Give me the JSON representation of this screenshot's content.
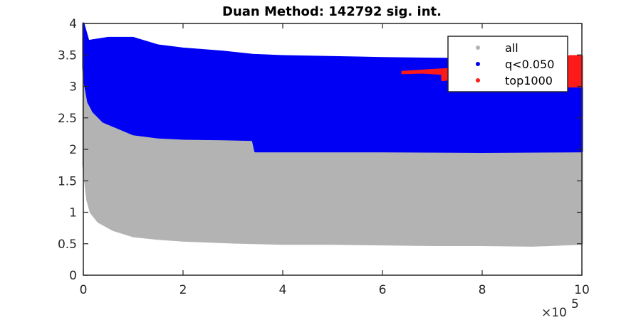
{
  "chart_data": {
    "type": "scatter",
    "title": "Duan Method: 142792 sig. int.",
    "xlabel": "",
    "ylabel": "",
    "xlim": [
      0,
      1000000
    ],
    "ylim": [
      0,
      4
    ],
    "x_exponent_label": "×10",
    "x_exponent_power": "5",
    "x_ticks": [
      0,
      200000,
      400000,
      600000,
      800000,
      1000000
    ],
    "x_tick_labels": [
      "0",
      "2",
      "4",
      "6",
      "8",
      "10"
    ],
    "y_ticks": [
      0,
      0.5,
      1,
      1.5,
      2,
      2.5,
      3,
      3.5,
      4
    ],
    "y_tick_labels": [
      "0",
      "0.5",
      "1",
      "1.5",
      "2",
      "2.5",
      "3",
      "3.5",
      "4"
    ],
    "grid": false,
    "legend_position": "top-right",
    "series": [
      {
        "name": "all",
        "color": "#b3b3b3",
        "points": [
          [
            0,
            4.0
          ],
          [
            3000,
            3.05
          ],
          [
            10000,
            2.75
          ],
          [
            20000,
            2.6
          ],
          [
            40000,
            2.45
          ],
          [
            70000,
            2.35
          ],
          [
            100000,
            2.25
          ],
          [
            150000,
            2.2
          ],
          [
            200000,
            2.18
          ],
          [
            280000,
            2.17
          ],
          [
            340000,
            2.16
          ],
          [
            345000,
            1.98
          ],
          [
            400000,
            1.98
          ],
          [
            600000,
            1.97
          ],
          [
            800000,
            1.97
          ],
          [
            1000000,
            1.98
          ],
          [
            1000000,
            0.5
          ],
          [
            900000,
            0.47
          ],
          [
            800000,
            0.48
          ],
          [
            700000,
            0.48
          ],
          [
            600000,
            0.49
          ],
          [
            500000,
            0.5
          ],
          [
            400000,
            0.5
          ],
          [
            300000,
            0.52
          ],
          [
            200000,
            0.55
          ],
          [
            150000,
            0.58
          ],
          [
            100000,
            0.62
          ],
          [
            60000,
            0.72
          ],
          [
            30000,
            0.85
          ],
          [
            15000,
            1.0
          ],
          [
            8000,
            1.2
          ],
          [
            3000,
            1.55
          ],
          [
            0,
            1.75
          ]
        ]
      },
      {
        "name": "q<0.050",
        "color": "#0000f5",
        "points": [
          [
            0,
            4.0
          ],
          [
            10000,
            3.72
          ],
          [
            50000,
            3.77
          ],
          [
            100000,
            3.77
          ],
          [
            150000,
            3.65
          ],
          [
            200000,
            3.6
          ],
          [
            280000,
            3.55
          ],
          [
            340000,
            3.5
          ],
          [
            400000,
            3.48
          ],
          [
            600000,
            3.45
          ],
          [
            700000,
            3.44
          ],
          [
            800000,
            3.43
          ],
          [
            1000000,
            3.47
          ],
          [
            1000000,
            1.97
          ],
          [
            800000,
            1.96
          ],
          [
            600000,
            1.97
          ],
          [
            400000,
            1.97
          ],
          [
            345000,
            1.97
          ],
          [
            340000,
            2.15
          ],
          [
            280000,
            2.16
          ],
          [
            200000,
            2.17
          ],
          [
            150000,
            2.19
          ],
          [
            100000,
            2.24
          ],
          [
            70000,
            2.34
          ],
          [
            40000,
            2.44
          ],
          [
            20000,
            2.6
          ],
          [
            10000,
            2.75
          ],
          [
            3000,
            3.05
          ],
          [
            0,
            3.3
          ]
        ]
      },
      {
        "name": "top1000",
        "color": "#ff1a1a",
        "points": [
          [
            640000,
            3.23
          ],
          [
            680000,
            3.25
          ],
          [
            720000,
            3.27
          ],
          [
            760000,
            3.28
          ],
          [
            800000,
            3.3
          ],
          [
            860000,
            3.32
          ],
          [
            920000,
            3.36
          ],
          [
            960000,
            3.4
          ],
          [
            975000,
            3.48
          ],
          [
            1000000,
            3.48
          ],
          [
            1000000,
            3.0
          ],
          [
            975000,
            3.0
          ],
          [
            940000,
            3.07
          ],
          [
            880000,
            3.1
          ],
          [
            820000,
            3.13
          ],
          [
            770000,
            3.15
          ],
          [
            720000,
            3.1
          ],
          [
            720000,
            3.2
          ],
          [
            680000,
            3.22
          ],
          [
            640000,
            3.21
          ]
        ]
      }
    ]
  }
}
